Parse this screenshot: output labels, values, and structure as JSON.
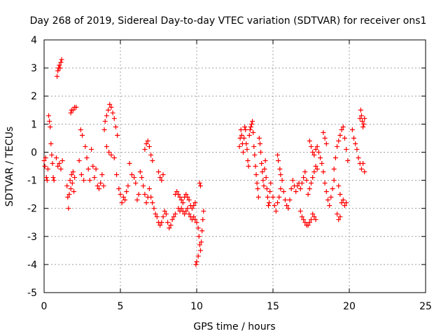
{
  "chart_data": {
    "type": "scatter",
    "title": "Day 268 of 2019, Sidereal Day-to-day VTEC variation (SDTVAR) for receiver ons1",
    "xlabel": "GPS time / hours",
    "ylabel": "SDTVAR / TECUs",
    "xlim": [
      0,
      25
    ],
    "ylim": [
      -5,
      4
    ],
    "xticks": [
      0,
      5,
      10,
      15,
      20,
      25
    ],
    "yticks": [
      -5,
      -4,
      -3,
      -2,
      -1,
      0,
      1,
      2,
      3,
      4
    ],
    "grid": true,
    "marker": "+",
    "color": "#ff0000",
    "series": [
      {
        "name": "ons1",
        "points": [
          [
            0.0,
            -0.3
          ],
          [
            0.05,
            -0.5
          ],
          [
            0.1,
            -0.2
          ],
          [
            0.15,
            -0.9
          ],
          [
            0.2,
            -1.0
          ],
          [
            0.25,
            -0.6
          ],
          [
            0.3,
            1.3
          ],
          [
            0.35,
            1.1
          ],
          [
            0.4,
            0.9
          ],
          [
            0.45,
            0.3
          ],
          [
            0.5,
            -0.1
          ],
          [
            0.55,
            -0.4
          ],
          [
            0.6,
            -0.9
          ],
          [
            0.65,
            -1.0
          ],
          [
            0.85,
            2.7
          ],
          [
            0.9,
            2.9
          ],
          [
            0.95,
            3.0
          ],
          [
            1.0,
            3.1
          ],
          [
            1.05,
            3.0
          ],
          [
            1.1,
            3.2
          ],
          [
            1.15,
            3.3
          ],
          [
            0.8,
            -0.2
          ],
          [
            0.9,
            -0.5
          ],
          [
            1.0,
            -0.4
          ],
          [
            1.1,
            -0.6
          ],
          [
            1.2,
            -0.3
          ],
          [
            1.5,
            -1.2
          ],
          [
            1.55,
            -1.6
          ],
          [
            1.6,
            -2.0
          ],
          [
            1.65,
            -1.5
          ],
          [
            1.7,
            -1.0
          ],
          [
            1.75,
            -1.3
          ],
          [
            1.8,
            -0.8
          ],
          [
            1.85,
            -1.1
          ],
          [
            1.9,
            -0.7
          ],
          [
            1.95,
            -1.4
          ],
          [
            2.0,
            -0.9
          ],
          [
            1.75,
            1.4
          ],
          [
            1.8,
            1.5
          ],
          [
            1.9,
            1.5
          ],
          [
            2.0,
            1.6
          ],
          [
            2.1,
            1.6
          ],
          [
            2.4,
            0.8
          ],
          [
            2.5,
            0.6
          ],
          [
            2.3,
            -0.3
          ],
          [
            2.45,
            -0.8
          ],
          [
            2.6,
            -1.0
          ],
          [
            2.7,
            0.2
          ],
          [
            2.8,
            -0.2
          ],
          [
            2.9,
            -0.6
          ],
          [
            3.0,
            -1.0
          ],
          [
            3.1,
            0.1
          ],
          [
            3.2,
            -0.5
          ],
          [
            3.3,
            -0.9
          ],
          [
            3.4,
            -0.6
          ],
          [
            3.5,
            -1.2
          ],
          [
            3.6,
            -1.3
          ],
          [
            3.7,
            -1.1
          ],
          [
            3.8,
            -0.8
          ],
          [
            3.9,
            -1.2
          ],
          [
            3.95,
            0.8
          ],
          [
            4.0,
            1.1
          ],
          [
            4.1,
            1.3
          ],
          [
            4.2,
            1.5
          ],
          [
            4.3,
            1.7
          ],
          [
            4.4,
            1.6
          ],
          [
            4.5,
            1.4
          ],
          [
            4.6,
            1.2
          ],
          [
            4.7,
            0.9
          ],
          [
            4.8,
            0.6
          ],
          [
            4.1,
            0.2
          ],
          [
            4.25,
            0.0
          ],
          [
            4.4,
            -0.1
          ],
          [
            4.6,
            -0.2
          ],
          [
            4.75,
            -0.8
          ],
          [
            4.9,
            -1.3
          ],
          [
            5.0,
            -1.5
          ],
          [
            5.1,
            -1.8
          ],
          [
            5.2,
            -1.6
          ],
          [
            5.3,
            -1.7
          ],
          [
            5.4,
            -1.4
          ],
          [
            5.5,
            -1.2
          ],
          [
            5.6,
            -0.4
          ],
          [
            5.75,
            -0.8
          ],
          [
            5.9,
            -0.9
          ],
          [
            6.0,
            -1.1
          ],
          [
            6.1,
            -1.7
          ],
          [
            6.2,
            -1.5
          ],
          [
            6.3,
            -0.7
          ],
          [
            6.4,
            -0.9
          ],
          [
            6.5,
            -1.2
          ],
          [
            6.6,
            -1.5
          ],
          [
            6.7,
            -1.8
          ],
          [
            6.8,
            -1.6
          ],
          [
            6.9,
            -1.3
          ],
          [
            6.6,
            0.1
          ],
          [
            6.7,
            0.3
          ],
          [
            6.8,
            0.4
          ],
          [
            6.9,
            0.2
          ],
          [
            7.0,
            -0.1
          ],
          [
            7.1,
            -0.3
          ],
          [
            7.0,
            -1.6
          ],
          [
            7.1,
            -1.8
          ],
          [
            7.2,
            -2.0
          ],
          [
            7.3,
            -2.2
          ],
          [
            7.4,
            -2.3
          ],
          [
            7.5,
            -2.5
          ],
          [
            7.6,
            -2.6
          ],
          [
            7.7,
            -2.5
          ],
          [
            7.8,
            -2.3
          ],
          [
            7.9,
            -2.1
          ],
          [
            8.0,
            -2.2
          ],
          [
            8.1,
            -2.5
          ],
          [
            8.2,
            -2.7
          ],
          [
            8.3,
            -2.6
          ],
          [
            8.4,
            -2.4
          ],
          [
            8.5,
            -2.3
          ],
          [
            8.6,
            -2.2
          ],
          [
            7.5,
            -0.7
          ],
          [
            7.6,
            -0.9
          ],
          [
            7.7,
            -1.0
          ],
          [
            7.8,
            -0.8
          ],
          [
            8.6,
            -1.5
          ],
          [
            8.7,
            -1.4
          ],
          [
            8.8,
            -1.5
          ],
          [
            8.9,
            -1.6
          ],
          [
            9.0,
            -1.7
          ],
          [
            9.1,
            -1.8
          ],
          [
            9.2,
            -1.6
          ],
          [
            9.3,
            -1.5
          ],
          [
            9.4,
            -1.6
          ],
          [
            9.5,
            -1.7
          ],
          [
            9.6,
            -1.9
          ],
          [
            9.7,
            -2.0
          ],
          [
            9.8,
            -1.9
          ],
          [
            9.9,
            -1.8
          ],
          [
            8.8,
            -2.0
          ],
          [
            8.9,
            -2.1
          ],
          [
            9.0,
            -2.0
          ],
          [
            9.1,
            -2.1
          ],
          [
            9.2,
            -2.2
          ],
          [
            9.3,
            -2.1
          ],
          [
            9.4,
            -2.0
          ],
          [
            9.5,
            -2.2
          ],
          [
            9.6,
            -2.3
          ],
          [
            9.7,
            -2.4
          ],
          [
            9.8,
            -2.3
          ],
          [
            9.9,
            -2.4
          ],
          [
            10.0,
            -2.5
          ],
          [
            10.1,
            -2.7
          ],
          [
            10.15,
            -3.0
          ],
          [
            10.2,
            -3.3
          ],
          [
            10.25,
            -3.5
          ],
          [
            10.3,
            -3.2
          ],
          [
            10.35,
            -2.8
          ],
          [
            10.4,
            -2.4
          ],
          [
            10.45,
            -2.1
          ],
          [
            10.2,
            -1.1
          ],
          [
            10.25,
            -1.2
          ],
          [
            10.1,
            -3.7
          ],
          [
            10.0,
            -3.9
          ],
          [
            9.95,
            -4.0
          ],
          [
            12.8,
            0.2
          ],
          [
            12.85,
            0.5
          ],
          [
            12.9,
            0.8
          ],
          [
            12.95,
            0.6
          ],
          [
            13.0,
            0.3
          ],
          [
            13.05,
            0.0
          ],
          [
            13.1,
            0.5
          ],
          [
            13.15,
            0.9
          ],
          [
            13.2,
            0.8
          ],
          [
            13.25,
            0.3
          ],
          [
            13.3,
            0.1
          ],
          [
            13.35,
            -0.3
          ],
          [
            13.4,
            -0.5
          ],
          [
            13.45,
            0.6
          ],
          [
            13.5,
            0.8
          ],
          [
            13.55,
            0.9
          ],
          [
            13.6,
            1.0
          ],
          [
            13.65,
            1.1
          ],
          [
            13.7,
            0.7
          ],
          [
            13.75,
            0.2
          ],
          [
            13.8,
            -0.1
          ],
          [
            13.85,
            -0.5
          ],
          [
            13.9,
            -0.8
          ],
          [
            13.95,
            -1.1
          ],
          [
            14.0,
            -1.3
          ],
          [
            14.05,
            -1.6
          ],
          [
            14.1,
            0.5
          ],
          [
            14.15,
            0.3
          ],
          [
            14.2,
            0.0
          ],
          [
            14.25,
            -0.4
          ],
          [
            14.3,
            -0.7
          ],
          [
            14.35,
            -1.0
          ],
          [
            14.4,
            -1.2
          ],
          [
            14.45,
            -0.6
          ],
          [
            14.5,
            -0.3
          ],
          [
            14.55,
            -0.9
          ],
          [
            14.6,
            -1.3
          ],
          [
            14.65,
            -1.6
          ],
          [
            14.7,
            -1.9
          ],
          [
            14.75,
            -1.8
          ],
          [
            14.8,
            -1.4
          ],
          [
            14.85,
            -1.1
          ],
          [
            15.0,
            -1.6
          ],
          [
            15.1,
            -1.9
          ],
          [
            15.2,
            -2.1
          ],
          [
            15.3,
            -1.8
          ],
          [
            15.4,
            -1.6
          ],
          [
            15.5,
            -1.3
          ],
          [
            15.6,
            -1.0
          ],
          [
            15.7,
            -1.4
          ],
          [
            15.8,
            -1.7
          ],
          [
            15.9,
            -1.9
          ],
          [
            16.0,
            -2.0
          ],
          [
            16.1,
            -1.7
          ],
          [
            16.2,
            -1.3
          ],
          [
            16.3,
            -1.0
          ],
          [
            16.4,
            -1.2
          ],
          [
            16.5,
            -1.4
          ],
          [
            16.6,
            -1.2
          ],
          [
            16.7,
            -1.1
          ],
          [
            16.8,
            -1.3
          ],
          [
            16.9,
            -1.1
          ],
          [
            17.0,
            -0.9
          ],
          [
            17.1,
            -0.7
          ],
          [
            17.2,
            -1.0
          ],
          [
            15.3,
            -0.1
          ],
          [
            15.35,
            -0.3
          ],
          [
            15.45,
            -0.6
          ],
          [
            15.5,
            -0.8
          ],
          [
            16.8,
            -2.1
          ],
          [
            16.9,
            -2.3
          ],
          [
            17.0,
            -2.4
          ],
          [
            17.1,
            -2.5
          ],
          [
            17.2,
            -2.6
          ],
          [
            17.3,
            -2.6
          ],
          [
            17.4,
            -2.5
          ],
          [
            17.5,
            -2.4
          ],
          [
            17.6,
            -2.2
          ],
          [
            17.7,
            -2.3
          ],
          [
            17.8,
            -2.4
          ],
          [
            17.3,
            -1.5
          ],
          [
            17.4,
            -1.3
          ],
          [
            17.5,
            -1.1
          ],
          [
            17.6,
            -0.9
          ],
          [
            17.7,
            -0.7
          ],
          [
            17.8,
            -0.5
          ],
          [
            17.9,
            -0.6
          ],
          [
            17.4,
            0.4
          ],
          [
            17.5,
            0.2
          ],
          [
            17.6,
            0.0
          ],
          [
            17.7,
            -0.1
          ],
          [
            17.8,
            0.1
          ],
          [
            17.9,
            0.2
          ],
          [
            18.0,
            0.0
          ],
          [
            18.1,
            -0.2
          ],
          [
            18.2,
            -0.4
          ],
          [
            18.3,
            -0.7
          ],
          [
            18.4,
            -1.1
          ],
          [
            18.5,
            -1.4
          ],
          [
            18.6,
            -1.7
          ],
          [
            18.7,
            -1.9
          ],
          [
            18.8,
            -1.6
          ],
          [
            18.9,
            -1.3
          ],
          [
            19.0,
            -1.0
          ],
          [
            18.3,
            0.7
          ],
          [
            18.4,
            0.5
          ],
          [
            18.5,
            0.3
          ],
          [
            19.0,
            -0.6
          ],
          [
            19.1,
            -0.2
          ],
          [
            19.2,
            0.2
          ],
          [
            19.3,
            0.4
          ],
          [
            19.4,
            0.6
          ],
          [
            19.5,
            0.8
          ],
          [
            19.6,
            0.9
          ],
          [
            19.7,
            0.5
          ],
          [
            19.8,
            0.1
          ],
          [
            19.9,
            -0.3
          ],
          [
            19.3,
            -1.2
          ],
          [
            19.4,
            -1.5
          ],
          [
            19.5,
            -1.8
          ],
          [
            19.6,
            -1.7
          ],
          [
            19.7,
            -1.9
          ],
          [
            19.8,
            -1.8
          ],
          [
            19.2,
            -2.2
          ],
          [
            19.3,
            -2.4
          ],
          [
            19.4,
            -2.3
          ],
          [
            20.2,
            0.8
          ],
          [
            20.3,
            0.5
          ],
          [
            20.4,
            0.3
          ],
          [
            20.5,
            0.1
          ],
          [
            20.6,
            -0.2
          ],
          [
            20.7,
            -0.4
          ],
          [
            20.7,
            1.2
          ],
          [
            20.75,
            1.5
          ],
          [
            20.8,
            1.3
          ],
          [
            20.85,
            1.1
          ],
          [
            20.9,
            0.9
          ],
          [
            20.95,
            1.0
          ],
          [
            21.0,
            1.2
          ],
          [
            20.8,
            -0.6
          ],
          [
            20.9,
            -0.4
          ],
          [
            21.0,
            -0.7
          ]
        ]
      }
    ]
  }
}
